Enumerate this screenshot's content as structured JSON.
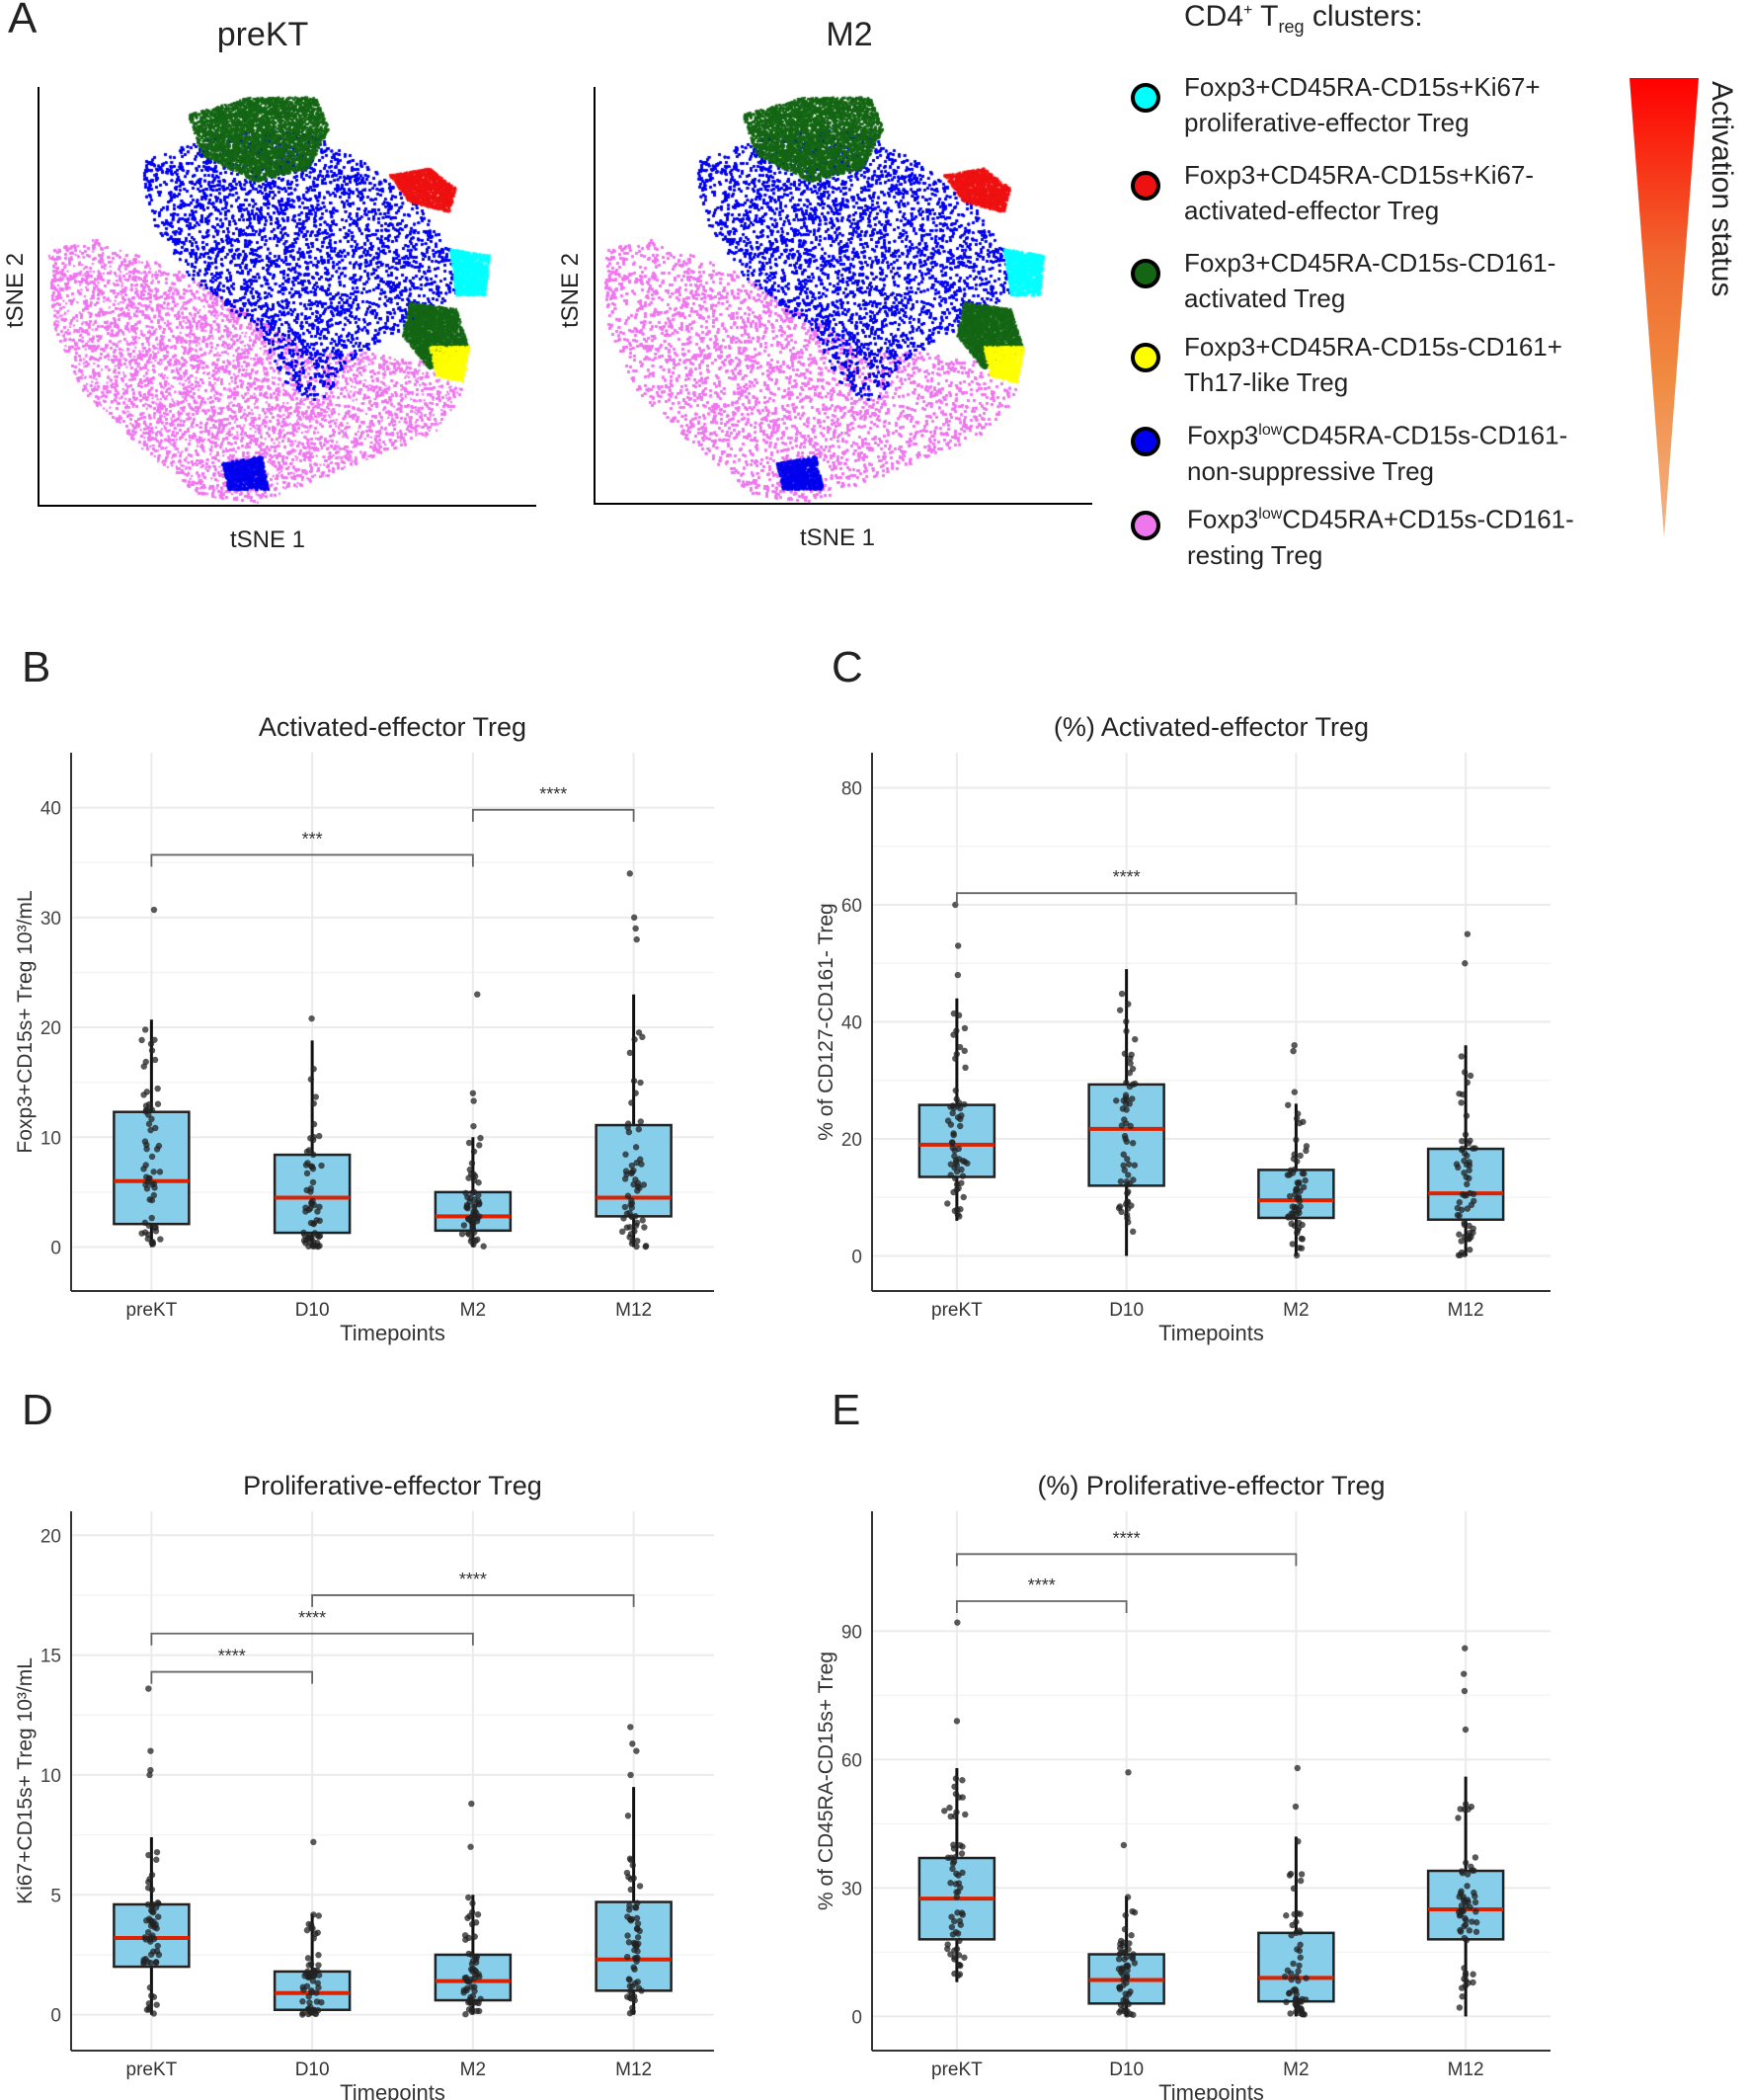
{
  "panel_a": {
    "letter": "A",
    "maps": [
      {
        "title": "preKT",
        "xlabel": "tSNE 1",
        "ylabel": "tSNE 2"
      },
      {
        "title": "M2",
        "xlabel": "tSNE 1",
        "ylabel": "tSNE 2"
      }
    ],
    "legend": {
      "title_main": "CD4",
      "title_sup": "+",
      "title_t": " T",
      "title_sub": "reg",
      "title_end": " clusters:",
      "items": [
        {
          "line1": "Foxp3+CD45RA-CD15s+Ki67+",
          "line2": "proliferative-effector Treg",
          "color": "#00ffff"
        },
        {
          "line1": "Foxp3+CD45RA-CD15s+Ki67-",
          "line2": "activated-effector Treg",
          "color": "#ee1111"
        },
        {
          "line1": "Foxp3+CD45RA-CD15s-CD161-",
          "line2": "activated Treg",
          "color": "#146614"
        },
        {
          "line1": "Foxp3+CD45RA-CD15s-CD161+",
          "line2": "Th17-like Treg",
          "color": "#ffff00"
        },
        {
          "line1a": "Foxp3",
          "line1sup": "low",
          "line1b": "CD45RA-CD15s-CD161-",
          "line2": "non-suppressive Treg",
          "color": "#0000ee"
        },
        {
          "line1a": "Foxp3",
          "line1sup": "low",
          "line1b": "CD45RA+CD15s-CD161-",
          "line2": "resting Treg",
          "color": "#ee77ee"
        }
      ],
      "gradient_label": "Activation status",
      "gradient_colors": [
        "#ff0000",
        "#f08a40",
        "#f5b58a"
      ]
    }
  },
  "chart_data": [
    {
      "letter": "B",
      "type": "box",
      "title": "Activated-effector Treg",
      "xlabel": "Timepoints",
      "ylabel": "Foxp3+CD15s+ Treg  10³/mL",
      "categories": [
        "preKT",
        "D10",
        "M2",
        "M12"
      ],
      "ylim": [
        -4,
        45
      ],
      "yticks": [
        0,
        10,
        20,
        30,
        40
      ],
      "boxes": [
        {
          "q1": 2.1,
          "median": 6.0,
          "q3": 12.3,
          "whisker_low": 0,
          "whisker_high": 20.7,
          "outliers": [
            30.7
          ]
        },
        {
          "q1": 1.3,
          "median": 4.5,
          "q3": 8.4,
          "whisker_low": 0,
          "whisker_high": 18.8,
          "outliers": [
            20.8
          ]
        },
        {
          "q1": 1.5,
          "median": 2.8,
          "q3": 5.0,
          "whisker_low": 0,
          "whisker_high": 10.0,
          "outliers": [
            11,
            13.3,
            14,
            23
          ]
        },
        {
          "q1": 2.8,
          "median": 4.5,
          "q3": 11.1,
          "whisker_low": 0,
          "whisker_high": 23.0,
          "outliers": [
            28,
            29,
            30,
            34
          ]
        }
      ],
      "significance": [
        {
          "from": 0,
          "to": 2,
          "y": 35.7,
          "label": "***"
        },
        {
          "from": 2,
          "to": 3,
          "y": 39.8,
          "label": "****"
        }
      ]
    },
    {
      "letter": "C",
      "type": "box",
      "title": "(%) Activated-effector Treg",
      "xlabel": "Timepoints",
      "ylabel": "% of CD127-CD161- Treg",
      "categories": [
        "preKT",
        "D10",
        "M2",
        "M12"
      ],
      "ylim": [
        -6,
        86
      ],
      "yticks": [
        0,
        20,
        40,
        60,
        80
      ],
      "boxes": [
        {
          "q1": 13.5,
          "median": 19.0,
          "q3": 25.8,
          "whisker_low": 6,
          "whisker_high": 44,
          "outliers": [
            48,
            53,
            60
          ]
        },
        {
          "q1": 12.0,
          "median": 21.7,
          "q3": 29.3,
          "whisker_low": 0,
          "whisker_high": 49,
          "outliers": []
        },
        {
          "q1": 6.5,
          "median": 9.5,
          "q3": 14.7,
          "whisker_low": 0,
          "whisker_high": 26,
          "outliers": [
            28,
            35,
            36
          ]
        },
        {
          "q1": 6.2,
          "median": 10.7,
          "q3": 18.3,
          "whisker_low": 0,
          "whisker_high": 36,
          "outliers": [
            50,
            55
          ]
        }
      ],
      "significance": [
        {
          "from": 0,
          "to": 2,
          "y": 62,
          "label": "****"
        }
      ]
    },
    {
      "letter": "D",
      "type": "box",
      "title": "Proliferative-effector Treg",
      "xlabel": "Timepoints",
      "ylabel": "Ki67+CD15s+ Treg  10³/mL",
      "categories": [
        "preKT",
        "D10",
        "M2",
        "M12"
      ],
      "ylim": [
        -1.5,
        21
      ],
      "yticks": [
        0,
        5,
        10,
        15,
        20
      ],
      "boxes": [
        {
          "q1": 2.0,
          "median": 3.2,
          "q3": 4.6,
          "whisker_low": 0,
          "whisker_high": 7.4,
          "outliers": [
            10,
            10.2,
            11,
            13.6
          ]
        },
        {
          "q1": 0.2,
          "median": 0.9,
          "q3": 1.8,
          "whisker_low": 0,
          "whisker_high": 4.2,
          "outliers": [
            7.2
          ]
        },
        {
          "q1": 0.6,
          "median": 1.4,
          "q3": 2.5,
          "whisker_low": 0,
          "whisker_high": 5.0,
          "outliers": [
            7,
            8.8
          ]
        },
        {
          "q1": 1.0,
          "median": 2.3,
          "q3": 4.7,
          "whisker_low": 0,
          "whisker_high": 9.5,
          "outliers": [
            10,
            11,
            11.3,
            12
          ]
        }
      ],
      "significance": [
        {
          "from": 0,
          "to": 1,
          "y": 14.3,
          "label": "****"
        },
        {
          "from": 0,
          "to": 2,
          "y": 15.9,
          "label": "****"
        },
        {
          "from": 1,
          "to": 3,
          "y": 17.5,
          "label": "****"
        }
      ]
    },
    {
      "letter": "E",
      "type": "box",
      "title": "(%) Proliferative-effector Treg",
      "xlabel": "Timepoints",
      "ylabel": "% of CD45RA-CD15s+ Treg",
      "categories": [
        "preKT",
        "D10",
        "M2",
        "M12"
      ],
      "ylim": [
        -8,
        118
      ],
      "yticks": [
        0,
        30,
        60,
        90
      ],
      "boxes": [
        {
          "q1": 18.0,
          "median": 27.5,
          "q3": 37.0,
          "whisker_low": 8,
          "whisker_high": 58,
          "outliers": [
            69,
            92
          ]
        },
        {
          "q1": 3.0,
          "median": 8.5,
          "q3": 14.5,
          "whisker_low": 0,
          "whisker_high": 28,
          "outliers": [
            40,
            57
          ]
        },
        {
          "q1": 3.5,
          "median": 9.0,
          "q3": 19.5,
          "whisker_low": 0,
          "whisker_high": 42,
          "outliers": [
            49,
            58
          ]
        },
        {
          "q1": 18.0,
          "median": 25.0,
          "q3": 34.0,
          "whisker_low": 0,
          "whisker_high": 56,
          "outliers": [
            67,
            76,
            80,
            86
          ]
        }
      ],
      "significance": [
        {
          "from": 0,
          "to": 1,
          "y": 97,
          "label": "****"
        },
        {
          "from": 0,
          "to": 2,
          "y": 108,
          "label": "****"
        }
      ]
    }
  ],
  "colors": {
    "box_fill": "#87ceeb",
    "median": "#dd2200",
    "point": "#222222",
    "grid": "#ebebeb"
  }
}
